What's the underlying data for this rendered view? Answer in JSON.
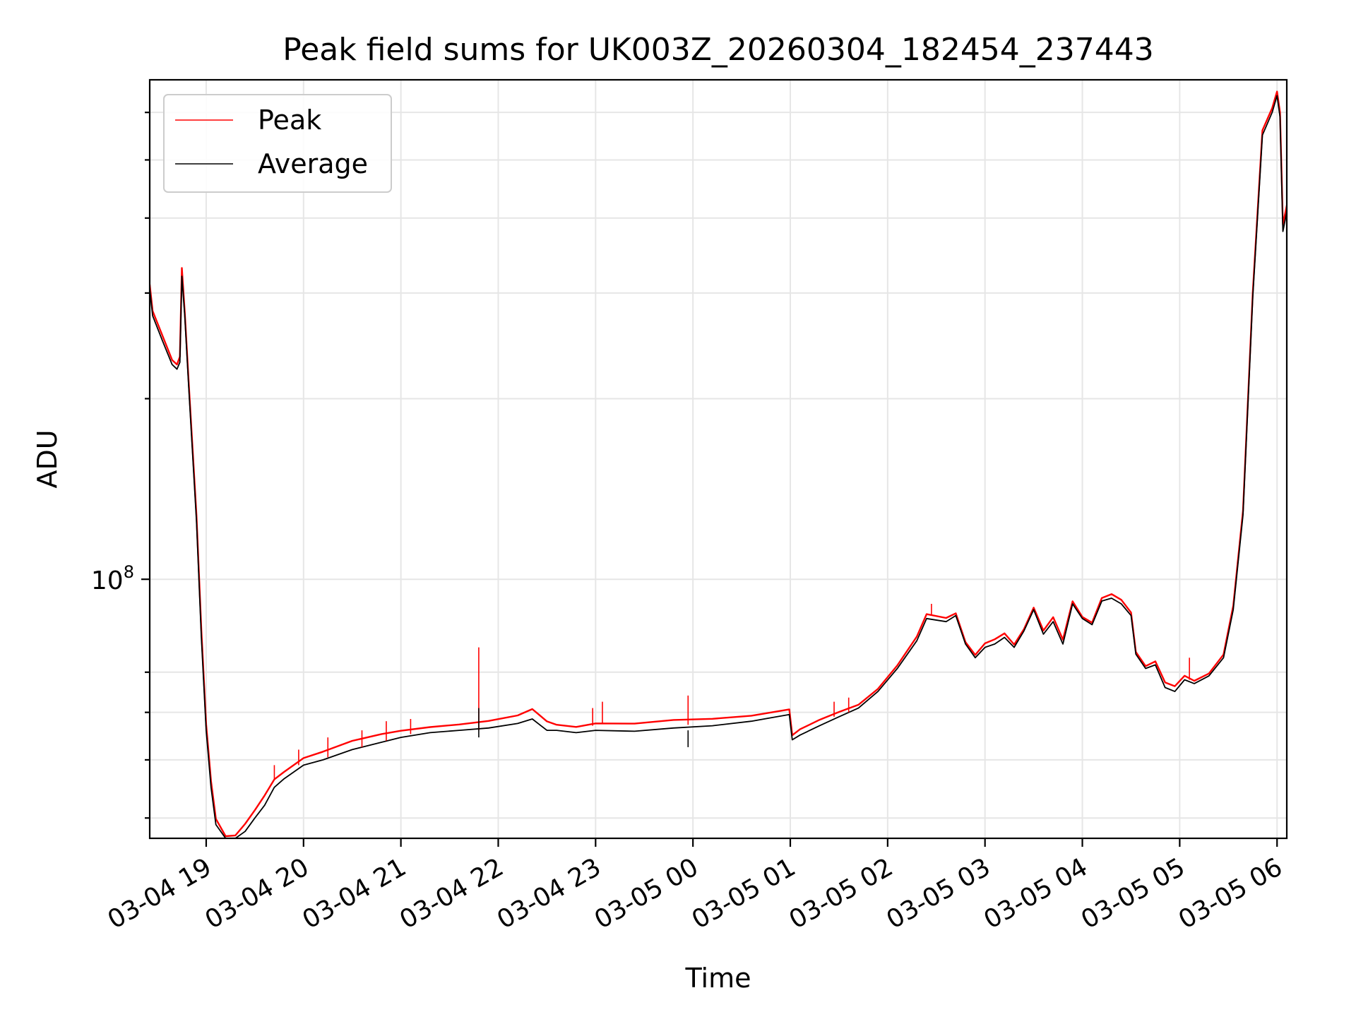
{
  "chart_data": {
    "type": "line",
    "title": "Peak field sums for UK003Z_20260304_182454_237443",
    "xlabel": "Time",
    "ylabel": "ADU",
    "yscale": "log",
    "grid": true,
    "legend_position": "top-left",
    "x_unit": "hours since 03-04 18:00",
    "xlim": [
      0.42,
      12.1
    ],
    "ylim": [
      37000000,
      680000000
    ],
    "x_ticks": [
      {
        "x": 1,
        "label": "03-04 19"
      },
      {
        "x": 2,
        "label": "03-04 20"
      },
      {
        "x": 3,
        "label": "03-04 21"
      },
      {
        "x": 4,
        "label": "03-04 22"
      },
      {
        "x": 5,
        "label": "03-04 23"
      },
      {
        "x": 6,
        "label": "03-05 00"
      },
      {
        "x": 7,
        "label": "03-05 01"
      },
      {
        "x": 8,
        "label": "03-05 02"
      },
      {
        "x": 9,
        "label": "03-05 03"
      },
      {
        "x": 10,
        "label": "03-05 04"
      },
      {
        "x": 11,
        "label": "03-05 05"
      },
      {
        "x": 12,
        "label": "03-05 06"
      }
    ],
    "y_major_tick": {
      "value": 100000000,
      "label_base": "10",
      "label_exp": "8"
    },
    "y_minor_ticks": [
      40000000,
      50000000,
      60000000,
      70000000,
      200000000,
      300000000,
      400000000,
      500000000,
      600000000
    ],
    "series": [
      {
        "name": "Peak",
        "color": "#ff0000",
        "x": [
          0.42,
          0.45,
          0.55,
          0.65,
          0.7,
          0.73,
          0.75,
          0.78,
          0.82,
          0.9,
          0.95,
          1.0,
          1.05,
          1.1,
          1.2,
          1.3,
          1.4,
          1.5,
          1.6,
          1.7,
          1.8,
          2.0,
          2.2,
          2.5,
          2.8,
          3.0,
          3.3,
          3.6,
          3.9,
          4.2,
          4.35,
          4.5,
          4.6,
          4.8,
          5.0,
          5.4,
          5.8,
          6.2,
          6.6,
          6.99,
          7.02,
          7.1,
          7.3,
          7.5,
          7.7,
          7.9,
          8.1,
          8.3,
          8.4,
          8.6,
          8.7,
          8.8,
          8.9,
          9.0,
          9.1,
          9.2,
          9.3,
          9.4,
          9.5,
          9.6,
          9.7,
          9.8,
          9.9,
          10.0,
          10.1,
          10.2,
          10.3,
          10.4,
          10.5,
          10.55,
          10.65,
          10.75,
          10.85,
          10.95,
          11.05,
          11.15,
          11.3,
          11.45,
          11.55,
          11.65,
          11.75,
          11.85,
          11.95,
          12.0,
          12.03,
          12.06,
          12.1
        ],
        "values": [
          310000000,
          280000000,
          255000000,
          232000000,
          228000000,
          235000000,
          330000000,
          280000000,
          215000000,
          128000000,
          82000000,
          57000000,
          46000000,
          40000000,
          37500000,
          37500000,
          39000000,
          41000000,
          43500000,
          46500000,
          48000000,
          50500000,
          51500000,
          53500000,
          55000000,
          56000000,
          57000000,
          57500000,
          58000000,
          59000000,
          60500000,
          58000000,
          57500000,
          57000000,
          57500000,
          57200000,
          58000000,
          58500000,
          59500000,
          61000000,
          55000000,
          56000000,
          58000000,
          60000000,
          62000000,
          66000000,
          72000000,
          80000000,
          87000000,
          86000000,
          88000000,
          79000000,
          75000000,
          78000000,
          79000000,
          81000000,
          78000000,
          83000000,
          90000000,
          82000000,
          86000000,
          79000000,
          92000000,
          87000000,
          85000000,
          93000000,
          94000000,
          92000000,
          88000000,
          76000000,
          72000000,
          73000000,
          67000000,
          66000000,
          69000000,
          68000000,
          70000000,
          75000000,
          90000000,
          130000000,
          300000000,
          560000000,
          610000000,
          650000000,
          600000000,
          390000000,
          420000000
        ]
      },
      {
        "name": "Average",
        "color": "#000000",
        "x": [
          0.42,
          0.45,
          0.55,
          0.65,
          0.7,
          0.73,
          0.75,
          0.78,
          0.82,
          0.9,
          0.95,
          1.0,
          1.05,
          1.1,
          1.2,
          1.3,
          1.4,
          1.5,
          1.6,
          1.7,
          1.8,
          2.0,
          2.2,
          2.5,
          2.8,
          3.0,
          3.3,
          3.6,
          3.9,
          4.2,
          4.35,
          4.5,
          4.6,
          4.8,
          5.0,
          5.4,
          5.8,
          6.2,
          6.6,
          6.99,
          7.02,
          7.1,
          7.3,
          7.5,
          7.7,
          7.9,
          8.1,
          8.3,
          8.4,
          8.6,
          8.7,
          8.8,
          8.9,
          9.0,
          9.1,
          9.2,
          9.3,
          9.4,
          9.5,
          9.6,
          9.7,
          9.8,
          9.9,
          10.0,
          10.1,
          10.2,
          10.3,
          10.4,
          10.5,
          10.55,
          10.65,
          10.75,
          10.85,
          10.95,
          11.05,
          11.15,
          11.3,
          11.45,
          11.55,
          11.65,
          11.75,
          11.85,
          11.95,
          12.0,
          12.03,
          12.06,
          12.1
        ],
        "values": [
          305000000,
          275000000,
          250000000,
          228000000,
          224000000,
          230000000,
          320000000,
          275000000,
          210000000,
          125000000,
          80000000,
          56000000,
          45000000,
          39000000,
          37000000,
          37000000,
          38000000,
          40000000,
          42000000,
          45000000,
          46500000,
          49000000,
          50000000,
          52000000,
          53500000,
          54500000,
          55500000,
          56000000,
          56500000,
          57500000,
          58500000,
          56000000,
          56000000,
          55500000,
          56000000,
          55800000,
          56500000,
          57000000,
          58000000,
          59500000,
          54000000,
          55000000,
          57000000,
          59000000,
          61000000,
          65000000,
          71000000,
          79000000,
          86000000,
          85000000,
          87000000,
          78000000,
          74000000,
          77000000,
          78000000,
          80000000,
          77000000,
          82000000,
          89000000,
          81000000,
          85000000,
          78000000,
          91000000,
          86000000,
          84000000,
          92000000,
          93000000,
          91000000,
          87000000,
          75000000,
          71000000,
          72000000,
          66000000,
          65000000,
          68000000,
          67000000,
          69000000,
          74000000,
          89000000,
          128000000,
          295000000,
          550000000,
          600000000,
          640000000,
          590000000,
          380000000,
          410000000
        ]
      }
    ],
    "spikes": [
      {
        "series": "Peak",
        "x": 3.8,
        "base": 56000000,
        "peak": 77000000
      },
      {
        "series": "Average",
        "x": 3.8,
        "base": 54500000,
        "peak": 61000000
      },
      {
        "series": "Peak",
        "x": 5.95,
        "base": 57200000,
        "peak": 64000000
      },
      {
        "series": "Average",
        "x": 5.95,
        "base": 56000000,
        "peak": 52500000
      },
      {
        "series": "Peak",
        "x": 5.07,
        "base": 57500000,
        "peak": 62500000
      },
      {
        "series": "Peak",
        "x": 4.97,
        "base": 57000000,
        "peak": 61000000
      },
      {
        "series": "Peak",
        "x": 3.1,
        "base": 55200000,
        "peak": 58500000
      },
      {
        "series": "Peak",
        "x": 2.85,
        "base": 53800000,
        "peak": 58000000
      },
      {
        "series": "Peak",
        "x": 2.6,
        "base": 52500000,
        "peak": 56000000
      },
      {
        "series": "Peak",
        "x": 1.95,
        "base": 49000000,
        "peak": 52000000
      },
      {
        "series": "Peak",
        "x": 2.25,
        "base": 50500000,
        "peak": 54500000
      },
      {
        "series": "Peak",
        "x": 1.7,
        "base": 46500000,
        "peak": 49000000
      },
      {
        "series": "Peak",
        "x": 7.6,
        "base": 60000000,
        "peak": 63500000
      },
      {
        "series": "Peak",
        "x": 7.45,
        "base": 59000000,
        "peak": 62500000
      },
      {
        "series": "Peak",
        "x": 8.45,
        "base": 87000000,
        "peak": 91000000
      },
      {
        "series": "Peak",
        "x": 11.1,
        "base": 68000000,
        "peak": 74000000
      }
    ]
  }
}
